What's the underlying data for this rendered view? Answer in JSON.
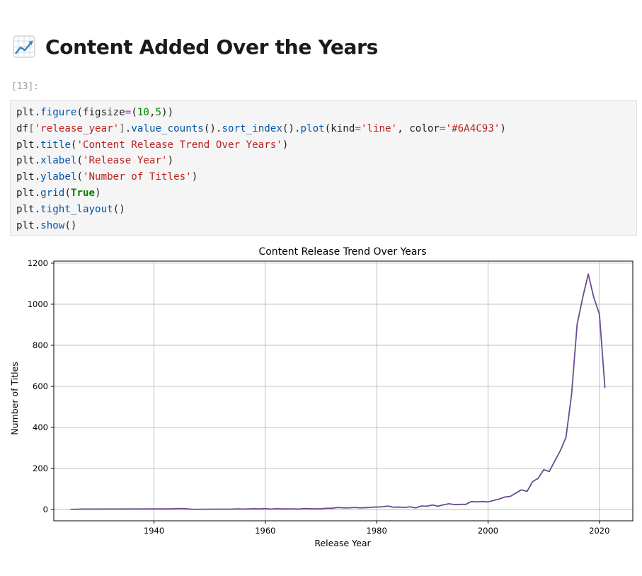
{
  "header": {
    "title": "Content Added Over the Years",
    "icon": "chart-increasing-icon"
  },
  "cell": {
    "prompt": "[13]:",
    "code": {
      "l1_a": "plt",
      "l1_b": ".",
      "l1_c": "figure",
      "l1_d": "(figsize",
      "l1_e": "=",
      "l1_f": "(",
      "l1_g": "10",
      "l1_h": ",",
      "l1_i": "5",
      "l1_j": "))",
      "l2_a": "df",
      "l2_b": "[",
      "l2_c": "'release_year'",
      "l2_d": "]",
      "l2_e": ".",
      "l2_f": "value_counts",
      "l2_g": "().",
      "l2_h": "sort_index",
      "l2_i": "().",
      "l2_j": "plot",
      "l2_k": "(kind",
      "l2_l": "=",
      "l2_m": "'line'",
      "l2_n": ", color",
      "l2_o": "=",
      "l2_p": "'#6A4C93'",
      "l2_q": ")",
      "l3_a": "plt",
      "l3_b": ".",
      "l3_c": "title",
      "l3_d": "(",
      "l3_e": "'Content Release Trend Over Years'",
      "l3_f": ")",
      "l4_a": "plt",
      "l4_b": ".",
      "l4_c": "xlabel",
      "l4_d": "(",
      "l4_e": "'Release Year'",
      "l4_f": ")",
      "l5_a": "plt",
      "l5_b": ".",
      "l5_c": "ylabel",
      "l5_d": "(",
      "l5_e": "'Number of Titles'",
      "l5_f": ")",
      "l6_a": "plt",
      "l6_b": ".",
      "l6_c": "grid",
      "l6_d": "(",
      "l6_e": "True",
      "l6_f": ")",
      "l7_a": "plt",
      "l7_b": ".",
      "l7_c": "tight_layout",
      "l7_d": "()",
      "l8_a": "plt",
      "l8_b": ".",
      "l8_c": "show",
      "l8_d": "()"
    }
  },
  "chart_data": {
    "type": "line",
    "title": "Content Release Trend Over Years",
    "xlabel": "Release Year",
    "ylabel": "Number of Titles",
    "xlim": [
      1922,
      2026
    ],
    "ylim": [
      -55,
      1210
    ],
    "xticks": [
      1940,
      1960,
      1980,
      2000,
      2020
    ],
    "yticks": [
      0,
      200,
      400,
      600,
      800,
      1000,
      1200
    ],
    "grid": true,
    "color": "#6A4C93",
    "series": [
      {
        "x": [
          1925,
          1926,
          1927,
          1942,
          1943,
          1944,
          1945,
          1946,
          1947,
          1954,
          1955,
          1956,
          1957,
          1958,
          1959,
          1960,
          1961,
          1962,
          1963,
          1964,
          1965,
          1966,
          1967,
          1968,
          1969,
          1970,
          1971,
          1972,
          1973,
          1974,
          1975,
          1976,
          1977,
          1978,
          1979,
          1980,
          1981,
          1982,
          1983,
          1984,
          1985,
          1986,
          1987,
          1988,
          1989,
          1990,
          1991,
          1992,
          1993,
          1994,
          1995,
          1996,
          1997,
          1998,
          1999,
          2000,
          2001,
          2002,
          2003,
          2004,
          2005,
          2006,
          2007,
          2008,
          2009,
          2010,
          2011,
          2012,
          2013,
          2014,
          2015,
          2016,
          2017,
          2018,
          2019,
          2020,
          2021
        ],
        "y": [
          1,
          1,
          2,
          3,
          3,
          4,
          5,
          3,
          1,
          2,
          3,
          2,
          3,
          4,
          3,
          5,
          2,
          4,
          3,
          3,
          3,
          2,
          5,
          4,
          3,
          4,
          6,
          6,
          10,
          8,
          8,
          10,
          8,
          9,
          11,
          12,
          13,
          17,
          11,
          12,
          10,
          13,
          8,
          17,
          16,
          22,
          16,
          23,
          28,
          24,
          25,
          25,
          39,
          37,
          39,
          37,
          44,
          51,
          61,
          64,
          80,
          96,
          88,
          136,
          152,
          194,
          185,
          237,
          288,
          352,
          560,
          902,
          1032,
          1147,
          1032,
          953,
          592
        ]
      }
    ]
  }
}
